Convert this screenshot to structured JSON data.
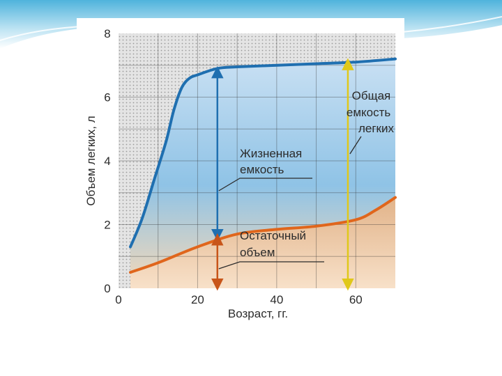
{
  "colors": {
    "total_capacity_curve": "#1f6fb0",
    "residual_volume_curve": "#e0661c",
    "vital_capacity_arrow": "#1f6fb0",
    "total_capacity_arrow": "#e8d21d",
    "residual_volume_arrow": "#c8551a",
    "plot_top": "#c9e0f3",
    "plot_bottom": "#f2c79d",
    "hatch": "#bbbbbb"
  },
  "chart_data": {
    "type": "line",
    "xlabel": "Возраст, гг.",
    "ylabel": "Объем легких, л",
    "xlim": [
      0,
      70
    ],
    "ylim": [
      0,
      8
    ],
    "xticks": [
      "0",
      "20",
      "40",
      "60"
    ],
    "yticks": [
      "0",
      "2",
      "4",
      "6",
      "8"
    ],
    "grid": true,
    "series": [
      {
        "name": "Общая емкость легких",
        "x": [
          3,
          6,
          9,
          12,
          14,
          16,
          18,
          20,
          25,
          30,
          40,
          50,
          60,
          70
        ],
        "y": [
          1.3,
          2.2,
          3.4,
          4.6,
          5.6,
          6.3,
          6.6,
          6.7,
          6.9,
          6.95,
          7.0,
          7.05,
          7.1,
          7.2
        ]
      },
      {
        "name": "Остаточный объем",
        "x": [
          3,
          10,
          20,
          30,
          40,
          50,
          60,
          65,
          70
        ],
        "y": [
          0.5,
          0.8,
          1.3,
          1.7,
          1.85,
          1.95,
          2.15,
          2.45,
          2.85
        ]
      }
    ],
    "annotations": [
      {
        "name": "total_capacity",
        "lines": [
          "Общая",
          "емкость",
          "легких"
        ]
      },
      {
        "name": "vital_capacity",
        "lines": [
          "Жизненная",
          "емкость"
        ]
      },
      {
        "name": "residual_volume",
        "lines": [
          "Остаточный",
          "объем"
        ]
      }
    ],
    "arrows": [
      {
        "name": "vital-capacity-arrow",
        "x": 25,
        "y_from": 1.6,
        "y_to": 6.85
      },
      {
        "name": "residual-volume-arrow",
        "x": 25,
        "y_from": 0.05,
        "y_to": 1.6
      },
      {
        "name": "total-capacity-arrow",
        "x": 58,
        "y_from": 0.05,
        "y_to": 7.1
      }
    ]
  }
}
